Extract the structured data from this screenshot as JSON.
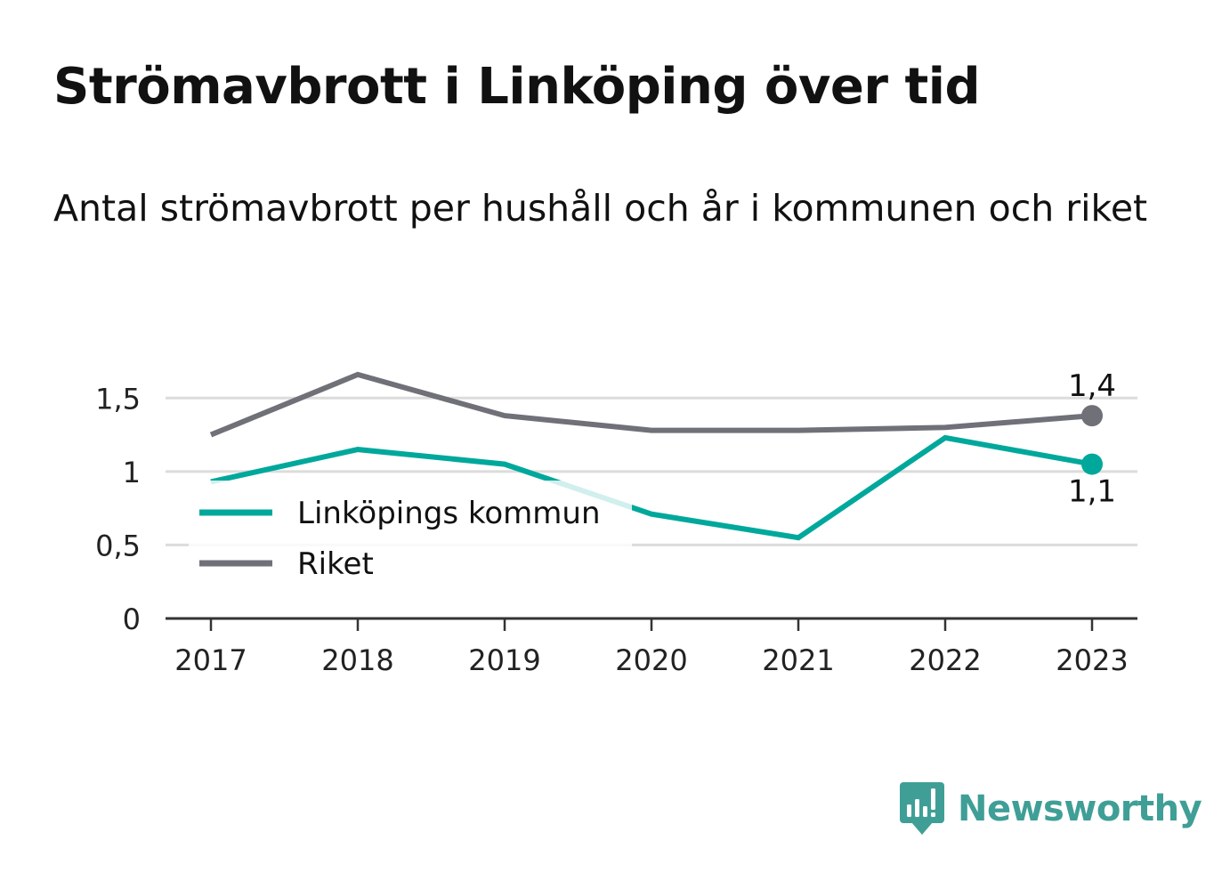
{
  "title": "Strömavbrott i Linköping över tid",
  "subtitle": "Antal strömavbrott per hushåll och år i kommunen och riket",
  "brand": {
    "name": "Newsworthy",
    "color": "#3f9f96"
  },
  "chart_data": {
    "type": "line",
    "x": [
      "2017",
      "2018",
      "2019",
      "2020",
      "2021",
      "2022",
      "2023"
    ],
    "series": [
      {
        "name": "Linköpings kommun",
        "color": "#00a89c",
        "values": [
          0.93,
          1.15,
          1.05,
          0.71,
          0.55,
          1.23,
          1.05
        ]
      },
      {
        "name": "Riket",
        "color": "#707078",
        "values": [
          1.25,
          1.66,
          1.38,
          1.28,
          1.28,
          1.3,
          1.38
        ]
      }
    ],
    "yticks": [
      0,
      0.5,
      1,
      1.5
    ],
    "ytick_labels": [
      "0",
      "0,5",
      "1",
      "1,5"
    ],
    "ylim": [
      0,
      1.75
    ],
    "end_labels": [
      {
        "series": "Riket",
        "x": "2023",
        "text": "1,4"
      },
      {
        "series": "Linköpings kommun",
        "x": "2023",
        "text": "1,1"
      }
    ],
    "legend": [
      "Linköpings kommun",
      "Riket"
    ],
    "legend_position": "lower-left",
    "grid": true,
    "xlabel": "",
    "ylabel": ""
  }
}
